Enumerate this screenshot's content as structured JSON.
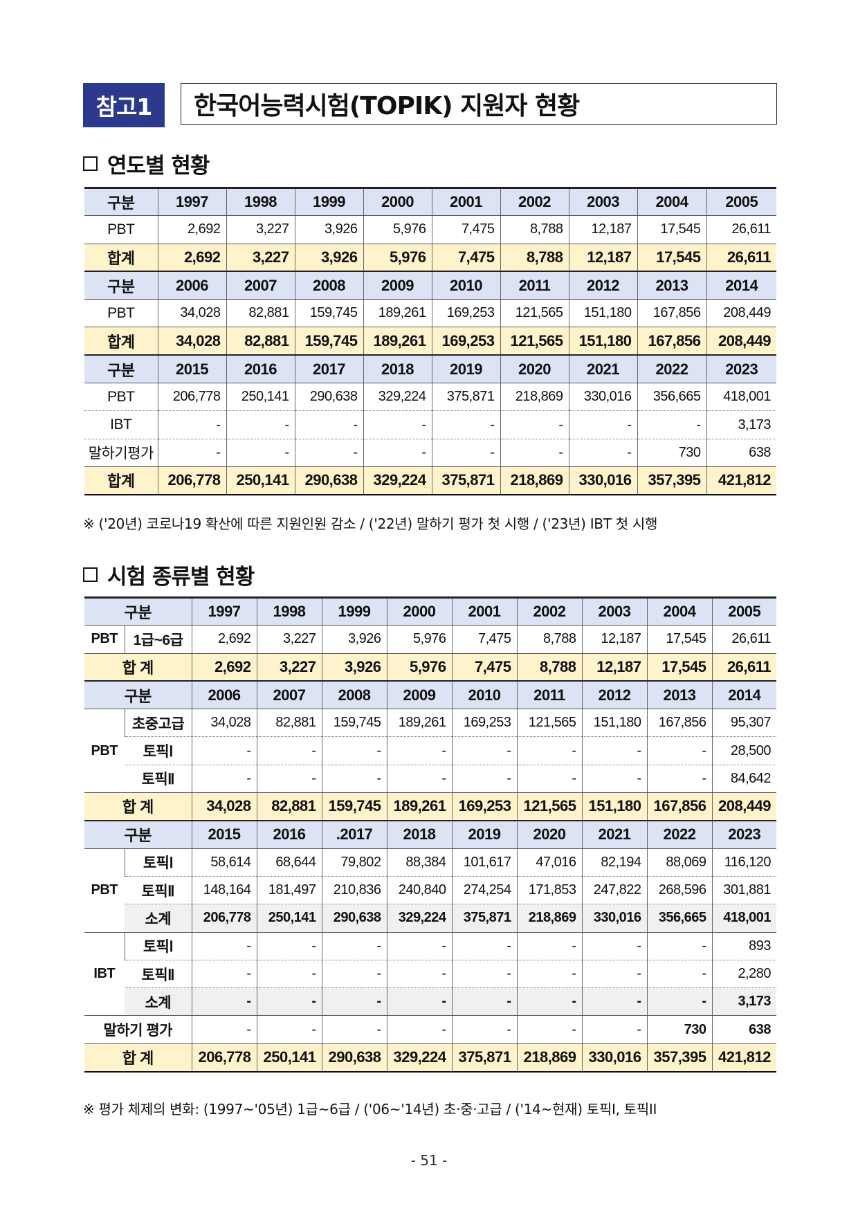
{
  "header": {
    "badge": "참고1",
    "title": "한국어능력시험(TOPIK) 지원자 현황"
  },
  "section1": {
    "heading": "연도별 현황",
    "label_col": "구분",
    "blocks": [
      {
        "years": [
          "1997",
          "1998",
          "1999",
          "2000",
          "2001",
          "2002",
          "2003",
          "2004",
          "2005"
        ],
        "rows": [
          {
            "label": "PBT",
            "values": [
              "2,692",
              "3,227",
              "3,926",
              "5,976",
              "7,475",
              "8,788",
              "12,187",
              "17,545",
              "26,611"
            ]
          }
        ],
        "total": {
          "label": "합계",
          "values": [
            "2,692",
            "3,227",
            "3,926",
            "5,976",
            "7,475",
            "8,788",
            "12,187",
            "17,545",
            "26,611"
          ]
        }
      },
      {
        "years": [
          "2006",
          "2007",
          "2008",
          "2009",
          "2010",
          "2011",
          "2012",
          "2013",
          "2014"
        ],
        "rows": [
          {
            "label": "PBT",
            "values": [
              "34,028",
              "82,881",
              "159,745",
              "189,261",
              "169,253",
              "121,565",
              "151,180",
              "167,856",
              "208,449"
            ]
          }
        ],
        "total": {
          "label": "합계",
          "values": [
            "34,028",
            "82,881",
            "159,745",
            "189,261",
            "169,253",
            "121,565",
            "151,180",
            "167,856",
            "208,449"
          ]
        }
      },
      {
        "years": [
          "2015",
          "2016",
          "2017",
          "2018",
          "2019",
          "2020",
          "2021",
          "2022",
          "2023"
        ],
        "rows": [
          {
            "label": "PBT",
            "values": [
              "206,778",
              "250,141",
              "290,638",
              "329,224",
              "375,871",
              "218,869",
              "330,016",
              "356,665",
              "418,001"
            ]
          },
          {
            "label": "IBT",
            "values": [
              "-",
              "-",
              "-",
              "-",
              "-",
              "-",
              "-",
              "-",
              "3,173"
            ]
          },
          {
            "label": "말하기평가",
            "values": [
              "-",
              "-",
              "-",
              "-",
              "-",
              "-",
              "-",
              "730",
              "638"
            ]
          }
        ],
        "total": {
          "label": "합계",
          "values": [
            "206,778",
            "250,141",
            "290,638",
            "329,224",
            "375,871",
            "218,869",
            "330,016",
            "357,395",
            "421,812"
          ]
        }
      }
    ],
    "note": "※ ('20년) 코로나19 확산에 따른 지원인원 감소 / ('22년) 말하기 평가 첫 시행 / ('23년) IBT 첫 시행"
  },
  "section2": {
    "heading": "시험 종류별 현황",
    "label_col": "구분",
    "block1": {
      "years": [
        "1997",
        "1998",
        "1999",
        "2000",
        "2001",
        "2002",
        "2003",
        "2004",
        "2005"
      ],
      "group": "PBT",
      "sub": "1급~6급",
      "values": [
        "2,692",
        "3,227",
        "3,926",
        "5,976",
        "7,475",
        "8,788",
        "12,187",
        "17,545",
        "26,611"
      ],
      "total_label": "합 계",
      "total": [
        "2,692",
        "3,227",
        "3,926",
        "5,976",
        "7,475",
        "8,788",
        "12,187",
        "17,545",
        "26,611"
      ]
    },
    "block2": {
      "years": [
        "2006",
        "2007",
        "2008",
        "2009",
        "2010",
        "2011",
        "2012",
        "2013",
        "2014"
      ],
      "group": "PBT",
      "rows": [
        {
          "sub": "초중고급",
          "values": [
            "34,028",
            "82,881",
            "159,745",
            "189,261",
            "169,253",
            "121,565",
            "151,180",
            "167,856",
            "95,307"
          ]
        },
        {
          "sub": "토픽Ⅰ",
          "values": [
            "-",
            "-",
            "-",
            "-",
            "-",
            "-",
            "-",
            "-",
            "28,500"
          ]
        },
        {
          "sub": "토픽Ⅱ",
          "values": [
            "-",
            "-",
            "-",
            "-",
            "-",
            "-",
            "-",
            "-",
            "84,642"
          ]
        }
      ],
      "total_label": "합 계",
      "total": [
        "34,028",
        "82,881",
        "159,745",
        "189,261",
        "169,253",
        "121,565",
        "151,180",
        "167,856",
        "208,449"
      ]
    },
    "block3": {
      "years": [
        "2015",
        "2016",
        ".2017",
        "2018",
        "2019",
        "2020",
        "2021",
        "2022",
        "2023"
      ],
      "pbt": {
        "group": "PBT",
        "rows": [
          {
            "sub": "토픽Ⅰ",
            "values": [
              "58,614",
              "68,644",
              "79,802",
              "88,384",
              "101,617",
              "47,016",
              "82,194",
              "88,069",
              "116,120"
            ]
          },
          {
            "sub": "토픽Ⅱ",
            "values": [
              "148,164",
              "181,497",
              "210,836",
              "240,840",
              "274,254",
              "171,853",
              "247,822",
              "268,596",
              "301,881"
            ]
          },
          {
            "sub": "소계",
            "values": [
              "206,778",
              "250,141",
              "290,638",
              "329,224",
              "375,871",
              "218,869",
              "330,016",
              "356,665",
              "418,001"
            ]
          }
        ]
      },
      "ibt": {
        "group": "IBT",
        "rows": [
          {
            "sub": "토픽Ⅰ",
            "values": [
              "-",
              "-",
              "-",
              "-",
              "-",
              "-",
              "-",
              "-",
              "893"
            ]
          },
          {
            "sub": "토픽Ⅱ",
            "values": [
              "-",
              "-",
              "-",
              "-",
              "-",
              "-",
              "-",
              "-",
              "2,280"
            ]
          },
          {
            "sub": "소계",
            "values": [
              "-",
              "-",
              "-",
              "-",
              "-",
              "-",
              "-",
              "-",
              "3,173"
            ]
          }
        ]
      },
      "speaking": {
        "label": "말하기 평가",
        "values": [
          "-",
          "-",
          "-",
          "-",
          "-",
          "-",
          "-",
          "730",
          "638"
        ]
      },
      "total_label": "합 계",
      "total": [
        "206,778",
        "250,141",
        "290,638",
        "329,224",
        "375,871",
        "218,869",
        "330,016",
        "357,395",
        "421,812"
      ]
    },
    "note": "※ 평가 체제의 변화: (1997~'05년) 1급~6급 / ('06~'14년) 초·중·고급 / ('14~현재) 토픽I, 토픽II"
  },
  "footer": {
    "page": "- 51 -"
  }
}
